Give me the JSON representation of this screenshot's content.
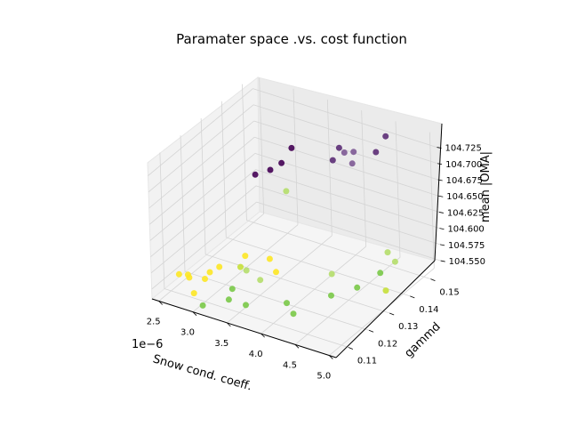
{
  "chart_data": {
    "type": "scatter",
    "title": "Paramater space .vs. cost function",
    "xlabel": "Snow cond. coeff.",
    "x_offset_label": "1e−6",
    "ylabel": "gammd",
    "zlabel": "mean |OMA|",
    "x_ticks": [
      "2.5",
      "3.0",
      "3.5",
      "4.0",
      "4.5",
      "5.0"
    ],
    "y_ticks": [
      "0.11",
      "0.12",
      "0.13",
      "0.14",
      "0.15"
    ],
    "z_ticks": [
      "104.550",
      "104.575",
      "104.600",
      "104.625",
      "104.650",
      "104.675",
      "104.700",
      "104.725"
    ],
    "colormap": "viridis",
    "colors": {
      "dark_purple": "#440154",
      "mid_purple": "#5c2d75",
      "light_purple": "#7e5a95",
      "light_green": "#b5de6b",
      "green": "#7ac948",
      "yellow_green": "#c6e03a",
      "yellow": "#fde725"
    },
    "points": [
      {
        "x": 4.6,
        "y": 0.142,
        "z": 104.735,
        "color": "mid_purple"
      },
      {
        "x": 4.5,
        "y": 0.15,
        "z": 104.735,
        "color": "mid_purple"
      },
      {
        "x": 4.3,
        "y": 0.141,
        "z": 104.728,
        "color": "light_purple"
      },
      {
        "x": 4.4,
        "y": 0.137,
        "z": 104.724,
        "color": "light_purple"
      },
      {
        "x": 4.1,
        "y": 0.143,
        "z": 104.715,
        "color": "light_purple"
      },
      {
        "x": 4.05,
        "y": 0.139,
        "z": 104.712,
        "color": "mid_purple"
      },
      {
        "x": 3.9,
        "y": 0.147,
        "z": 104.705,
        "color": "mid_purple"
      },
      {
        "x": 3.1,
        "y": 0.15,
        "z": 104.67,
        "color": "dark_purple"
      },
      {
        "x": 3.1,
        "y": 0.145,
        "z": 104.66,
        "color": "dark_purple"
      },
      {
        "x": 2.8,
        "y": 0.142,
        "z": 104.64,
        "color": "dark_purple"
      },
      {
        "x": 2.9,
        "y": 0.146,
        "z": 104.64,
        "color": "dark_purple"
      },
      {
        "x": 3.0,
        "y": 0.15,
        "z": 104.6,
        "color": "light_green"
      },
      {
        "x": 4.6,
        "y": 0.146,
        "z": 104.57,
        "color": "light_green"
      },
      {
        "x": 4.8,
        "y": 0.143,
        "z": 104.57,
        "color": "light_green"
      },
      {
        "x": 4.7,
        "y": 0.139,
        "z": 104.56,
        "color": "green"
      },
      {
        "x": 4.9,
        "y": 0.135,
        "z": 104.55,
        "color": "yellow_green"
      },
      {
        "x": 4.6,
        "y": 0.131,
        "z": 104.555,
        "color": "green"
      },
      {
        "x": 4.2,
        "y": 0.132,
        "z": 104.56,
        "color": "light_green"
      },
      {
        "x": 4.4,
        "y": 0.125,
        "z": 104.552,
        "color": "green"
      },
      {
        "x": 4.05,
        "y": 0.115,
        "z": 104.555,
        "color": "green"
      },
      {
        "x": 4.3,
        "y": 0.11,
        "z": 104.56,
        "color": "green"
      },
      {
        "x": 3.6,
        "y": 0.11,
        "z": 104.55,
        "color": "green"
      },
      {
        "x": 3.35,
        "y": 0.13,
        "z": 104.56,
        "color": "yellow"
      },
      {
        "x": 3.5,
        "y": 0.128,
        "z": 104.55,
        "color": "yellow"
      },
      {
        "x": 3.45,
        "y": 0.122,
        "z": 104.552,
        "color": "light_green"
      },
      {
        "x": 3.25,
        "y": 0.122,
        "z": 104.56,
        "color": "light_green"
      },
      {
        "x": 3.05,
        "y": 0.128,
        "z": 104.56,
        "color": "yellow"
      },
      {
        "x": 3.1,
        "y": 0.124,
        "z": 104.555,
        "color": "yellow_green"
      },
      {
        "x": 2.85,
        "y": 0.122,
        "z": 104.552,
        "color": "yellow"
      },
      {
        "x": 2.8,
        "y": 0.119,
        "z": 104.55,
        "color": "yellow"
      },
      {
        "x": 3.25,
        "y": 0.115,
        "z": 104.55,
        "color": "green"
      },
      {
        "x": 3.35,
        "y": 0.11,
        "z": 104.55,
        "color": "green"
      },
      {
        "x": 2.85,
        "y": 0.115,
        "z": 104.552,
        "color": "yellow"
      },
      {
        "x": 2.6,
        "y": 0.115,
        "z": 104.55,
        "color": "yellow"
      },
      {
        "x": 2.65,
        "y": 0.114,
        "z": 104.55,
        "color": "yellow"
      },
      {
        "x": 2.5,
        "y": 0.114,
        "z": 104.55,
        "color": "yellow"
      },
      {
        "x": 2.9,
        "y": 0.108,
        "z": 104.55,
        "color": "yellow"
      },
      {
        "x": 3.15,
        "y": 0.104,
        "z": 104.55,
        "color": "green"
      }
    ]
  }
}
